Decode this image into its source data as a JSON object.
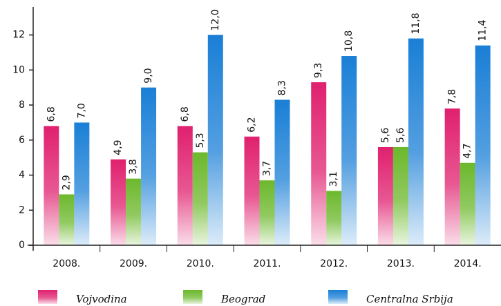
{
  "chart_data": {
    "type": "bar",
    "categories": [
      "2008.",
      "2009.",
      "2010.",
      "2011.",
      "2012.",
      "2013.",
      "2014."
    ],
    "series": [
      {
        "name": "Vojvodina",
        "color": "#e0206e",
        "values": [
          6.8,
          4.9,
          6.8,
          6.2,
          9.3,
          5.6,
          7.8
        ],
        "value_labels": [
          "6,8",
          "4,9",
          "6,8",
          "6,2",
          "9,3",
          "5,6",
          "7,8"
        ]
      },
      {
        "name": "Beograd",
        "color": "#6cb82c",
        "values": [
          2.9,
          3.8,
          5.3,
          3.7,
          3.1,
          5.6,
          4.7
        ],
        "value_labels": [
          "2,9",
          "3,8",
          "5,3",
          "3,7",
          "3,1",
          "5,6",
          "4,7"
        ]
      },
      {
        "name": "Centralna Srbija",
        "color": "#1a7fd6",
        "values": [
          7.0,
          9.0,
          12.0,
          8.3,
          10.8,
          11.8,
          11.4
        ],
        "value_labels": [
          "7,0",
          "9,0",
          "12,0",
          "8,3",
          "10,8",
          "11,8",
          "11,4"
        ]
      }
    ],
    "ylim": [
      0,
      13.6
    ],
    "yticks": [
      0,
      2,
      4,
      6,
      8,
      10,
      12
    ],
    "legend": "bottom"
  }
}
